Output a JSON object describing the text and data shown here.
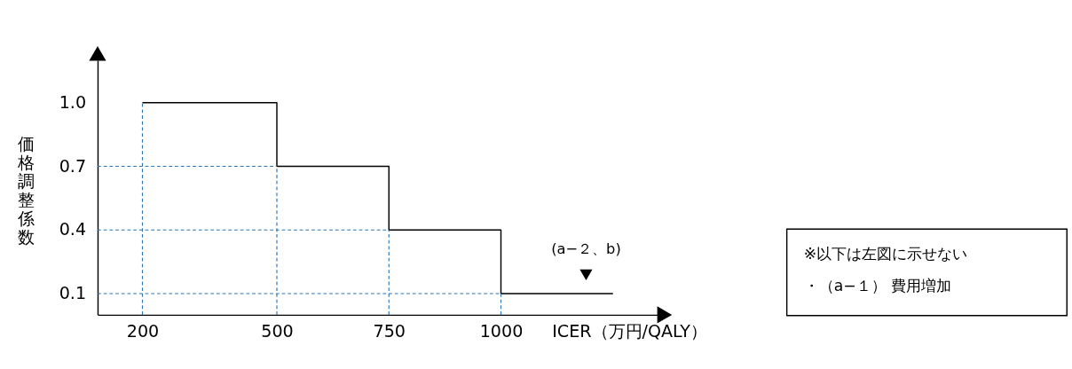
{
  "chart_data": {
    "type": "step",
    "xlabel": "ICER（万円/QALY）",
    "ylabel": "価格調整係数",
    "x": [
      200,
      500,
      750,
      1000,
      1250
    ],
    "series": [
      {
        "color": "#000000",
        "values": [
          1.0,
          0.7,
          0.4,
          0.1,
          0.1
        ]
      }
    ],
    "xlim": [
      100,
      1350
    ],
    "xticks": [
      200,
      500,
      750,
      1000
    ],
    "ylim": [
      0,
      1.2
    ],
    "yticks": [
      {
        "value": 0.1,
        "label": "0.1"
      },
      {
        "value": 0.4,
        "label": "0.4"
      },
      {
        "value": 0.7,
        "label": "0.7"
      },
      {
        "value": 1.0,
        "label": "1.0"
      }
    ],
    "ref_lines": [
      {
        "axis": "y",
        "value": 0.7,
        "color": "#2e75b6",
        "line_style": "dashed"
      },
      {
        "axis": "y",
        "value": 0.4,
        "color": "#2e75b6",
        "line_style": "dashed"
      },
      {
        "axis": "y",
        "value": 0.1,
        "color": "#2e75b6",
        "line_style": "dashed"
      },
      {
        "axis": "x",
        "value": 200,
        "color": "#2e75b6",
        "line_style": "dashed"
      },
      {
        "axis": "x",
        "value": 500,
        "color": "#2e75b6",
        "line_style": "dashed"
      },
      {
        "axis": "x",
        "value": 750,
        "color": "#2e75b6",
        "line_style": "dashed"
      },
      {
        "axis": "x",
        "value": 1000,
        "color": "#2e75b6",
        "line_style": "dashed"
      }
    ],
    "annotations": [
      {
        "text": "(a−２、b)",
        "x": 1190,
        "y": 0.1
      },
      "※以下は左図に示せない",
      "・（a−１） 費用増加"
    ],
    "grid": false,
    "line_style": "solid",
    "marker": "none"
  }
}
